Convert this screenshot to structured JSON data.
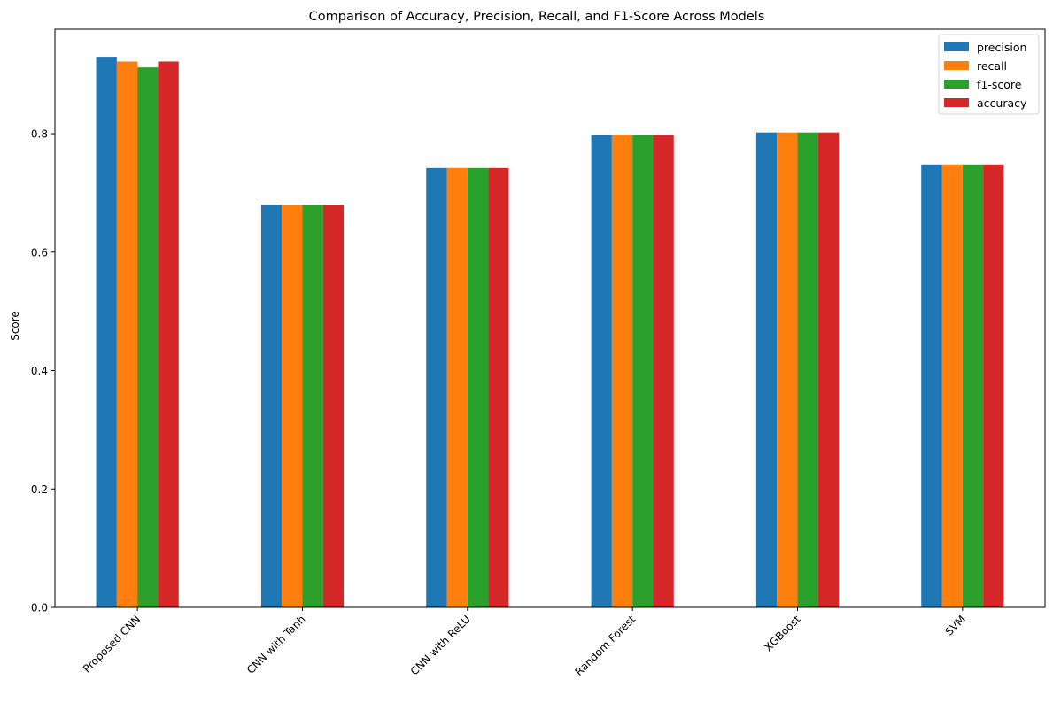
{
  "chart_data": {
    "type": "bar",
    "title": "Comparison of Accuracy, Precision, Recall, and F1-Score Across Models",
    "xlabel": "",
    "ylabel": "Score",
    "categories": [
      "Proposed CNN",
      "CNN with Tanh",
      "CNN with ReLU",
      "Random Forest",
      "XGBoost",
      "SVM"
    ],
    "series": [
      {
        "name": "precision",
        "color": "#1f77b4",
        "values": [
          0.93,
          0.68,
          0.742,
          0.798,
          0.802,
          0.748
        ]
      },
      {
        "name": "recall",
        "color": "#ff7f0e",
        "values": [
          0.922,
          0.68,
          0.742,
          0.798,
          0.802,
          0.748
        ]
      },
      {
        "name": "f1-score",
        "color": "#2ca02c",
        "values": [
          0.912,
          0.68,
          0.742,
          0.798,
          0.802,
          0.748
        ]
      },
      {
        "name": "accuracy",
        "color": "#d62728",
        "values": [
          0.922,
          0.68,
          0.742,
          0.798,
          0.802,
          0.748
        ]
      }
    ],
    "yticks": [
      "0.0",
      "0.2",
      "0.4",
      "0.6",
      "0.8"
    ],
    "ylim": [
      0,
      0.9765
    ],
    "grid": false,
    "legend_position": "top-right"
  }
}
